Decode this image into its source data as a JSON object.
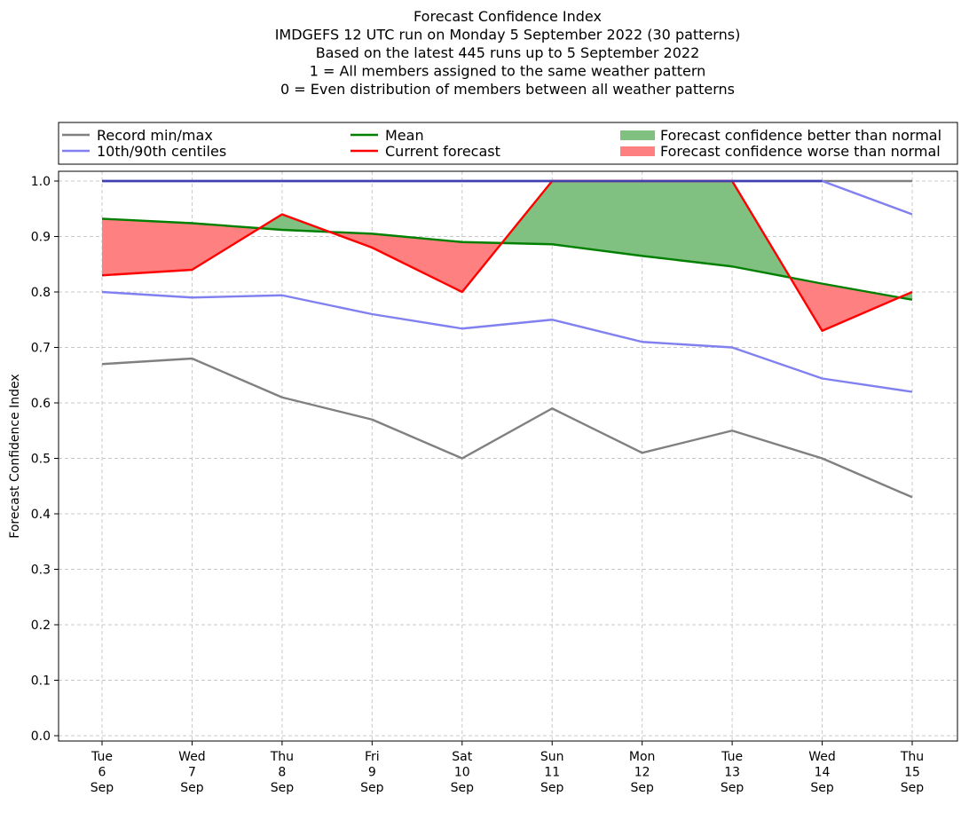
{
  "chart_data": {
    "type": "line",
    "title_lines": [
      "Forecast Confidence Index",
      "IMDGEFS 12 UTC run on Monday 5 September 2022 (30 patterns)",
      "Based on the latest 445 runs up to 5 September 2022",
      "1 = All members assigned to the same weather pattern",
      "0 = Even distribution of members between all weather patterns"
    ],
    "ylabel": "Forecast Confidence Index",
    "ylim": [
      0.0,
      1.0
    ],
    "yticks": [
      "0.0",
      "0.1",
      "0.2",
      "0.3",
      "0.4",
      "0.5",
      "0.6",
      "0.7",
      "0.8",
      "0.9",
      "1.0"
    ],
    "grid": true,
    "legend_position": "top",
    "categories": [
      [
        "Tue",
        "6",
        "Sep"
      ],
      [
        "Wed",
        "7",
        "Sep"
      ],
      [
        "Thu",
        "8",
        "Sep"
      ],
      [
        "Fri",
        "9",
        "Sep"
      ],
      [
        "Sat",
        "10",
        "Sep"
      ],
      [
        "Sun",
        "11",
        "Sep"
      ],
      [
        "Mon",
        "12",
        "Sep"
      ],
      [
        "Tue",
        "13",
        "Sep"
      ],
      [
        "Wed",
        "14",
        "Sep"
      ],
      [
        "Thu",
        "15",
        "Sep"
      ]
    ],
    "series": [
      {
        "key": "record_min",
        "values": [
          0.67,
          0.68,
          0.61,
          0.57,
          0.5,
          0.59,
          0.51,
          0.55,
          0.5,
          0.43
        ],
        "color": "#808080"
      },
      {
        "key": "record_max",
        "values": [
          1.0,
          1.0,
          1.0,
          1.0,
          1.0,
          1.0,
          1.0,
          1.0,
          1.0,
          1.0
        ],
        "color": "#808080"
      },
      {
        "key": "p10",
        "values": [
          0.8,
          0.79,
          0.794,
          0.76,
          0.734,
          0.75,
          0.71,
          0.7,
          0.644,
          0.62
        ],
        "color": "#8080f0"
      },
      {
        "key": "p90",
        "values": [
          1.0,
          1.0,
          1.0,
          1.0,
          1.0,
          1.0,
          1.0,
          1.0,
          1.0,
          0.94
        ],
        "color": "#8080f0"
      },
      {
        "key": "mean",
        "values": [
          0.932,
          0.924,
          0.912,
          0.905,
          0.89,
          0.886,
          0.865,
          0.846,
          0.815,
          0.786
        ],
        "color": "#008000"
      },
      {
        "key": "current",
        "values": [
          0.83,
          0.84,
          0.94,
          0.88,
          0.8,
          1.0,
          1.0,
          1.0,
          0.73,
          0.8
        ],
        "color": "#ff0000"
      }
    ],
    "legend": [
      {
        "label": "Record min/max",
        "kind": "line",
        "color": "#808080"
      },
      {
        "label": "10th/90th centiles",
        "kind": "line",
        "color": "#8080f0"
      },
      {
        "label": "Mean",
        "kind": "line",
        "color": "#008000"
      },
      {
        "label": "Current forecast",
        "kind": "line",
        "color": "#ff0000"
      },
      {
        "label": "Forecast confidence better than normal",
        "kind": "patch",
        "color": "#80c080"
      },
      {
        "label": "Forecast confidence worse than normal",
        "kind": "patch",
        "color": "#ff8080"
      }
    ],
    "fill_better_color": "#80c080",
    "fill_worse_color": "#ff8080"
  }
}
